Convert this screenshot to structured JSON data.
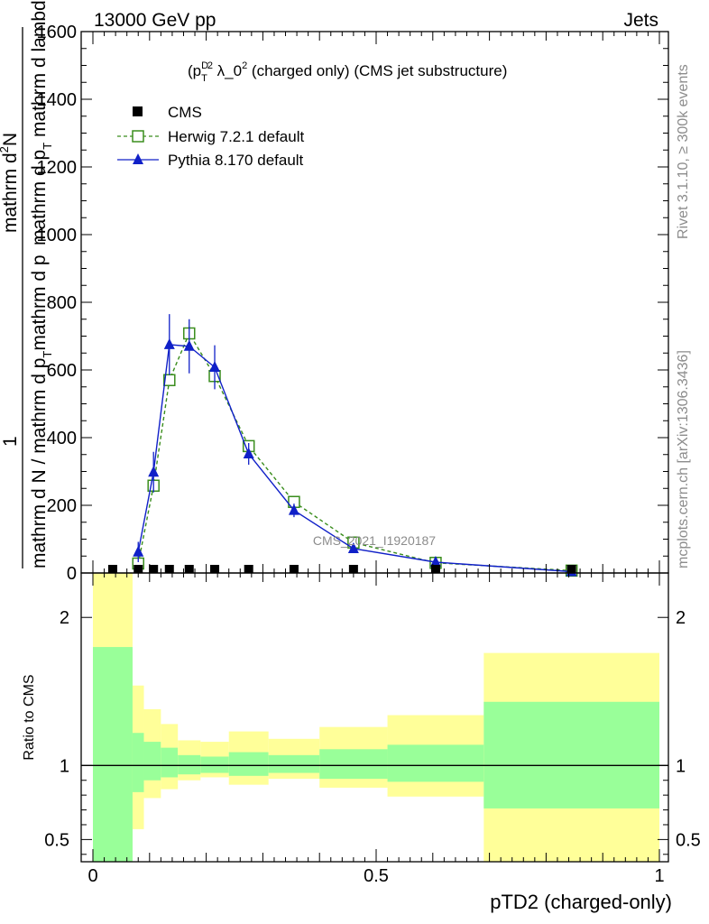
{
  "header": {
    "left": "13000 GeV pp",
    "right": "Jets"
  },
  "side_labels": {
    "rivet": "Rivet 3.1.10, ≥ 300k events",
    "mcplots": "mcplots.cern.ch [arXiv:1306.3436]"
  },
  "watermark": "CMS_2021_I1920187",
  "main_title": {
    "prefix": "(p",
    "sup": "D",
    "sub": "T",
    "after_sup2": "2",
    "mid": " λ_0",
    "after_sup": "2",
    "rest": " (charged only) (CMS jet substructure)"
  },
  "y_axis_label": {
    "numerator": "mathrm d",
    "numerator_sup": "2",
    "numerator_rest": "N",
    "denominator": "mathrm d p",
    "denominator_sub": "T",
    "denominator_rest": " mathrm d lambda",
    "one": "1",
    "lower": "mathrm d N / mathrm d p",
    "lower_sub": "T",
    "lower_rest": "mathrm d p"
  },
  "ratio_ylabel": "Ratio to CMS",
  "xlabel": "pTD2 (charged-only)",
  "legend": [
    {
      "label": "CMS",
      "color": "#000000",
      "marker": "square-filled"
    },
    {
      "label": "Herwig 7.2.1 default",
      "color": "#3a8d1d",
      "marker": "square-open",
      "dashed": true
    },
    {
      "label": "Pythia 8.170 default",
      "color": "#1020c8",
      "marker": "triangle-filled"
    }
  ],
  "chart_data": {
    "type": "line",
    "xlim": [
      0,
      1
    ],
    "ylim": [
      0,
      1600
    ],
    "ratio_ylim": [
      0.35,
      2.3
    ],
    "x_ticks": [
      {
        "value": 0,
        "label": "0"
      },
      {
        "value": 0.5,
        "label": "0.5"
      },
      {
        "value": 1,
        "label": "1"
      }
    ],
    "y_ticks": [
      {
        "value": 0,
        "label": "0"
      },
      {
        "value": 200,
        "label": "200"
      },
      {
        "value": 400,
        "label": "400"
      },
      {
        "value": 600,
        "label": "600"
      },
      {
        "value": 800,
        "label": "800"
      },
      {
        "value": 1000,
        "label": "1000"
      },
      {
        "value": 1200,
        "label": "1200"
      },
      {
        "value": 1400,
        "label": "1400"
      },
      {
        "value": 1600,
        "label": "1600"
      }
    ],
    "ratio_ticks": [
      {
        "value": 0.5,
        "label": "0.5"
      },
      {
        "value": 1,
        "label": "1"
      },
      {
        "value": 2,
        "label": "2"
      }
    ],
    "cms": {
      "x": [
        0.035,
        0.08,
        0.107,
        0.135,
        0.17,
        0.215,
        0.275,
        0.355,
        0.46,
        0.605,
        0.845
      ],
      "y": [
        1.5,
        2.5,
        3,
        4,
        4.5,
        4,
        3.5,
        2.5,
        1.5,
        0.8,
        0.3
      ]
    },
    "series": [
      {
        "name": "Herwig 7.2.1 default",
        "x": [
          0.08,
          0.107,
          0.135,
          0.17,
          0.215,
          0.275,
          0.355,
          0.46,
          0.605,
          0.845
        ],
        "y": [
          28,
          258,
          570,
          708,
          582,
          375,
          210,
          90,
          30,
          7
        ],
        "err": [
          5,
          12,
          18,
          20,
          18,
          12,
          9,
          6,
          3,
          1
        ]
      },
      {
        "name": "Pythia 8.170 default",
        "x": [
          0.08,
          0.107,
          0.135,
          0.17,
          0.215,
          0.275,
          0.355,
          0.46,
          0.605,
          0.845
        ],
        "y": [
          62,
          298,
          675,
          670,
          608,
          352,
          185,
          72,
          32,
          4
        ],
        "err": [
          30,
          60,
          90,
          80,
          65,
          32,
          20,
          10,
          4,
          1
        ]
      }
    ],
    "ratio_bands": [
      {
        "x0": 0.0,
        "x1": 0.07,
        "g_lo": 0.3,
        "g_hi": 1.8,
        "y_lo": 0.3,
        "y_hi": 2.3
      },
      {
        "x0": 0.07,
        "x1": 0.09,
        "g_lo": 0.82,
        "g_hi": 1.22,
        "y_lo": 0.57,
        "y_hi": 1.54
      },
      {
        "x0": 0.09,
        "x1": 0.12,
        "g_lo": 0.9,
        "g_hi": 1.16,
        "y_lo": 0.78,
        "y_hi": 1.38
      },
      {
        "x0": 0.12,
        "x1": 0.15,
        "g_lo": 0.92,
        "g_hi": 1.12,
        "y_lo": 0.84,
        "y_hi": 1.28
      },
      {
        "x0": 0.15,
        "x1": 0.19,
        "g_lo": 0.94,
        "g_hi": 1.07,
        "y_lo": 0.9,
        "y_hi": 1.17
      },
      {
        "x0": 0.19,
        "x1": 0.24,
        "g_lo": 0.95,
        "g_hi": 1.06,
        "y_lo": 0.92,
        "y_hi": 1.16
      },
      {
        "x0": 0.24,
        "x1": 0.31,
        "g_lo": 0.93,
        "g_hi": 1.09,
        "y_lo": 0.87,
        "y_hi": 1.23
      },
      {
        "x0": 0.31,
        "x1": 0.4,
        "g_lo": 0.95,
        "g_hi": 1.07,
        "y_lo": 0.91,
        "y_hi": 1.18
      },
      {
        "x0": 0.4,
        "x1": 0.52,
        "g_lo": 0.91,
        "g_hi": 1.11,
        "y_lo": 0.85,
        "y_hi": 1.26
      },
      {
        "x0": 0.52,
        "x1": 0.69,
        "g_lo": 0.89,
        "g_hi": 1.14,
        "y_lo": 0.79,
        "y_hi": 1.34
      },
      {
        "x0": 0.69,
        "x1": 1.0,
        "g_lo": 0.71,
        "g_hi": 1.43,
        "y_lo": 0.3,
        "y_hi": 1.76
      }
    ]
  },
  "colors": {
    "herwig": "#3a8d1d",
    "pythia": "#1020c8",
    "band_green": "#99ff99",
    "band_yellow": "#ffff99",
    "side_text": "#8c8c8c"
  }
}
